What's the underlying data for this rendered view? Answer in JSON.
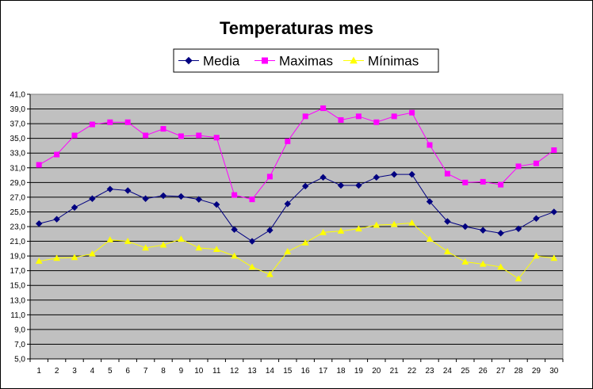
{
  "chart_data": {
    "type": "line",
    "title": "Temperaturas mes",
    "xlabel": "",
    "ylabel": "",
    "x": [
      1,
      2,
      3,
      4,
      5,
      6,
      7,
      8,
      9,
      10,
      11,
      12,
      13,
      14,
      15,
      16,
      17,
      18,
      19,
      20,
      21,
      22,
      23,
      24,
      25,
      26,
      27,
      28,
      29,
      30
    ],
    "ylim": [
      5.0,
      41.0
    ],
    "ytick_step": 2.0,
    "yticks": [
      "5,0",
      "7,0",
      "9,0",
      "11,0",
      "13,0",
      "15,0",
      "17,0",
      "19,0",
      "21,0",
      "23,0",
      "25,0",
      "27,0",
      "29,0",
      "31,0",
      "33,0",
      "35,0",
      "37,0",
      "39,0",
      "41,0"
    ],
    "grid": true,
    "legend_position": "top",
    "plot_background": "#c0c0c0",
    "series": [
      {
        "name": "Media",
        "color": "#000080",
        "marker": "diamond",
        "values": [
          23.4,
          24.0,
          25.6,
          26.8,
          28.1,
          27.9,
          26.8,
          27.2,
          27.1,
          26.7,
          26.0,
          22.6,
          21.0,
          22.5,
          26.1,
          28.5,
          29.7,
          28.6,
          28.6,
          29.7,
          30.1,
          30.1,
          26.4,
          23.7,
          23.0,
          22.5,
          22.1,
          22.7,
          24.1,
          25.0
        ]
      },
      {
        "name": "Maximas",
        "color": "#ff00ff",
        "marker": "square",
        "values": [
          31.4,
          32.8,
          35.4,
          36.9,
          37.2,
          37.2,
          35.4,
          36.3,
          35.3,
          35.4,
          35.1,
          27.3,
          26.7,
          29.8,
          34.6,
          38.0,
          39.1,
          37.5,
          38.0,
          37.2,
          38.0,
          38.5,
          34.1,
          30.2,
          29.0,
          29.1,
          28.7,
          31.2,
          31.6,
          33.4
        ]
      },
      {
        "name": "Mínimas",
        "color": "#ffff00",
        "marker": "triangle",
        "values": [
          18.3,
          18.7,
          18.8,
          19.3,
          21.2,
          21.0,
          20.1,
          20.5,
          21.3,
          20.1,
          19.9,
          19.0,
          17.5,
          16.5,
          19.6,
          20.8,
          22.2,
          22.4,
          22.7,
          23.2,
          23.3,
          23.5,
          21.3,
          19.6,
          18.2,
          17.9,
          17.5,
          15.9,
          19.0,
          18.7
        ]
      }
    ]
  }
}
